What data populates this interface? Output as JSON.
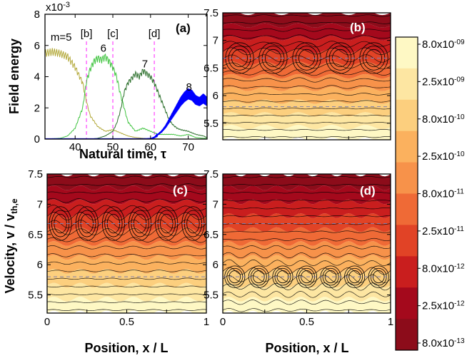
{
  "chart_data": [
    {
      "id": "a",
      "type": "line",
      "panel_label": "(a)",
      "xlabel": "Natural time, τ",
      "ylabel": "Field energy",
      "exponent_label": "x10",
      "exponent_power": "-3",
      "xlim": [
        32,
        75
      ],
      "ylim": [
        0,
        8
      ],
      "xticks": [
        "40",
        "50",
        "60",
        "70"
      ],
      "yticks": [
        "0",
        "2",
        "4",
        "6",
        "8"
      ],
      "markers": [
        {
          "label": "[b]",
          "x": 43
        },
        {
          "label": "[c]",
          "x": 50
        },
        {
          "label": "[d]",
          "x": 61
        }
      ],
      "mode_labels": [
        {
          "label": "m=5",
          "x": 36.3,
          "y": 6.3
        },
        {
          "label": "6",
          "x": 47.5,
          "y": 5.6
        },
        {
          "label": "7",
          "x": 58.5,
          "y": 4.6
        },
        {
          "label": "8",
          "x": 70.2,
          "y": 3.1
        }
      ],
      "series": [
        {
          "key": "m5",
          "color": "#b3a93a",
          "x": [
            32,
            34,
            36,
            38,
            40,
            42,
            43,
            44,
            46,
            48,
            50,
            52,
            54,
            56,
            58,
            60,
            62,
            64,
            66,
            68,
            70,
            72,
            74,
            75
          ],
          "y": [
            5.5,
            5.6,
            5.5,
            5.3,
            4.6,
            3.6,
            2.4,
            1.5,
            0.8,
            0.5,
            0.6,
            0.4,
            0.2,
            0.1,
            0.05,
            0.02,
            0.02,
            0,
            0,
            0,
            0,
            0,
            0,
            0
          ]
        },
        {
          "key": "m6",
          "color": "#40c440",
          "x": [
            32,
            36,
            38,
            40,
            42,
            43,
            44,
            45,
            46,
            47,
            48,
            49,
            50,
            51,
            52,
            53,
            54,
            56,
            58,
            60,
            62,
            64,
            66,
            68,
            70,
            72,
            74,
            75
          ],
          "y": [
            0,
            0.05,
            0.2,
            0.7,
            2,
            3.7,
            4.5,
            5.0,
            5.2,
            5.1,
            5.3,
            5.0,
            4.6,
            4.0,
            2.9,
            2.0,
            1.1,
            0.5,
            0.7,
            0.5,
            0.3,
            0.3,
            0.3,
            0.2,
            0.3,
            0.1,
            0.05,
            0.05
          ]
        },
        {
          "key": "m7",
          "color": "#2a6e2a",
          "x": [
            32,
            44,
            46,
            48,
            50,
            51,
            52,
            53,
            54,
            55,
            56,
            57,
            58,
            59,
            60,
            61,
            62,
            63,
            64,
            65,
            66,
            67,
            68,
            70,
            72,
            74,
            75
          ],
          "y": [
            0,
            0,
            0.05,
            0.2,
            0.5,
            1,
            1.8,
            3.0,
            3.6,
            3.9,
            4.2,
            4.0,
            4.4,
            4.2,
            4.0,
            3.6,
            3.0,
            2.4,
            1.8,
            1.2,
            0.9,
            0.7,
            0.6,
            0.5,
            0.3,
            0.2,
            0.1
          ]
        },
        {
          "key": "m8",
          "color": "#0000ff",
          "x": [
            32,
            58,
            60,
            61,
            62,
            63,
            64,
            65,
            66,
            67,
            68,
            69,
            70,
            71,
            72,
            73,
            74,
            75
          ],
          "y": [
            0,
            0,
            0.02,
            0.1,
            0.3,
            0.5,
            0.8,
            1.2,
            1.6,
            2.0,
            2.4,
            2.7,
            2.9,
            2.8,
            2.5,
            2.4,
            2.6,
            2.4
          ]
        }
      ]
    },
    {
      "id": "b",
      "type": "heatmap",
      "panel_label": "(b)",
      "xlabel": "",
      "ylabel": "",
      "xlim": [
        0,
        1
      ],
      "ylim": [
        5.2,
        7.5
      ],
      "xticks": [],
      "yticks": [
        "5.5",
        "6",
        "6.5",
        "7",
        "7.5"
      ],
      "dashed_lines_v": [
        5.8,
        6.68
      ],
      "island_count": 5,
      "island_center_v": 6.68,
      "island_halfwidth_v": 0.28
    },
    {
      "id": "c",
      "type": "heatmap",
      "panel_label": "(c)",
      "xlabel": "Position, x / L",
      "ylabel": "Velocity, v / v",
      "ylabel_sub": "th,e",
      "xlim": [
        0,
        1
      ],
      "ylim": [
        5.2,
        7.5
      ],
      "xticks": [
        "0",
        "0.5",
        "1"
      ],
      "yticks": [
        "5.5",
        "6",
        "6.5",
        "7",
        "7.5"
      ],
      "dashed_lines_v": [
        5.8,
        6.68
      ],
      "island_count": 6,
      "island_center_v": 6.68,
      "island_halfwidth_v": 0.28
    },
    {
      "id": "d",
      "type": "heatmap",
      "panel_label": "(d)",
      "xlabel": "Position, x / L",
      "ylabel": "",
      "xlim": [
        0,
        1
      ],
      "ylim": [
        5.2,
        7.5
      ],
      "xticks": [
        "0",
        "0.5",
        "1"
      ],
      "yticks": [
        "5.5",
        "6",
        "6.5",
        "7",
        "7.5"
      ],
      "dashed_lines_v": [
        5.8,
        6.68
      ],
      "island_count": 7,
      "island_center_v": 5.8,
      "island_halfwidth_v": 0.18
    },
    {
      "id": "colorbar",
      "type": "colorbar",
      "levels": [
        {
          "mant": "8.0x10",
          "exp": "-09"
        },
        {
          "mant": "2.5x10",
          "exp": "-09"
        },
        {
          "mant": "8.0x10",
          "exp": "-10"
        },
        {
          "mant": "2.5x10",
          "exp": "-10"
        },
        {
          "mant": "8.0x10",
          "exp": "-11"
        },
        {
          "mant": "2.5x10",
          "exp": "-11"
        },
        {
          "mant": "8.0x10",
          "exp": "-12"
        },
        {
          "mant": "2.5x10",
          "exp": "-12"
        },
        {
          "mant": "8.0x10",
          "exp": "-13"
        }
      ],
      "colors": [
        "#fef8c4",
        "#fde6a2",
        "#fccf7e",
        "#fbb15e",
        "#f7924a",
        "#ef6a36",
        "#e14326",
        "#c91e1e",
        "#a4091c",
        "#8c0c1a"
      ]
    }
  ]
}
